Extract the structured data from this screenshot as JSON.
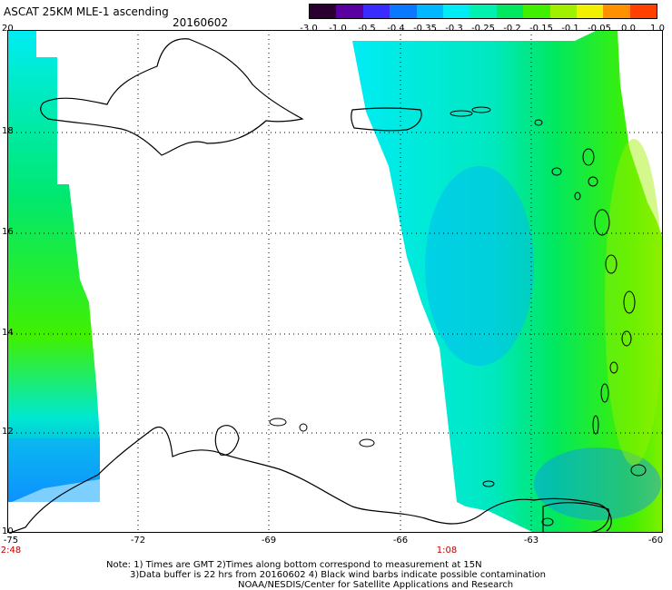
{
  "header": {
    "title": "ASCAT 25KM MLE-1 ascending",
    "date": "20160602"
  },
  "colorbar": {
    "labels": [
      "-3.0",
      "-1.0",
      "-0.5",
      "-0.4",
      "-0.35",
      "-0.3",
      "-0.25",
      "-0.2",
      "-0.15",
      "-0.1",
      "-0.05",
      "0.0",
      "1.0"
    ],
    "colors": [
      "#2a0030",
      "#5a00a0",
      "#3a2cff",
      "#0a78ff",
      "#00b8ff",
      "#00ecf4",
      "#00f0b0",
      "#00e860",
      "#40f000",
      "#a0f000",
      "#f0f000",
      "#ff9000",
      "#ff4000"
    ]
  },
  "axes": {
    "lat_labels": [
      "20",
      "18",
      "16",
      "14",
      "12",
      "10"
    ],
    "lon_labels": [
      "-75",
      "-72",
      "-69",
      "-66",
      "-63",
      "-60"
    ]
  },
  "times": {
    "left": "2:48",
    "right": "1:08"
  },
  "notes": {
    "line1": "Note: 1) Times are GMT 2)Times along bottom correspond to measurement at 15N",
    "line2": "3)Data buffer is 22 hrs from 20160602 4) Black wind barbs indicate possible contamination",
    "line3": "NOAA/NESDIS/Center for Satellite Applications and Research"
  }
}
